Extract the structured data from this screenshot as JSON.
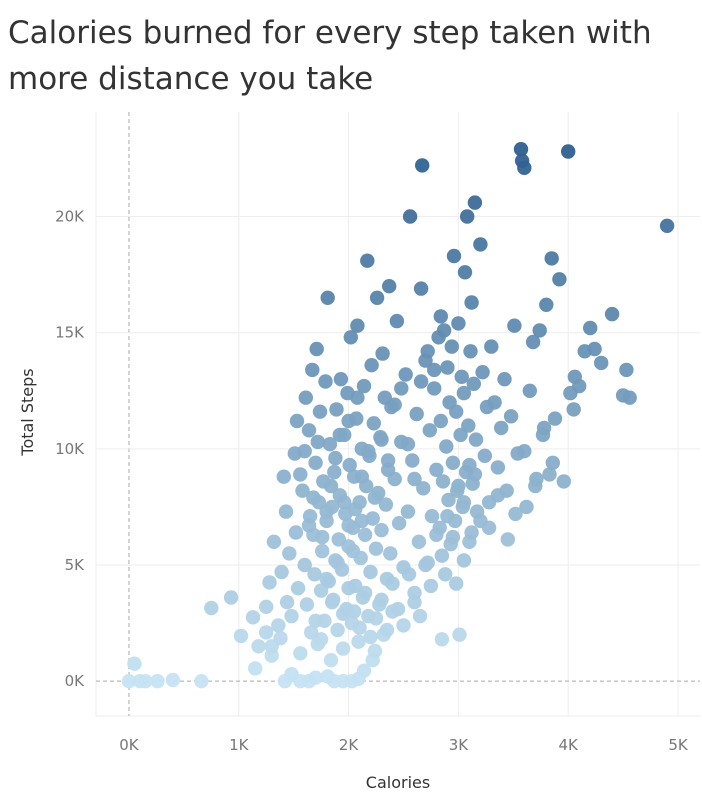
{
  "chart_data": {
    "type": "scatter",
    "title": "Calories burned for every step taken with more distance you take",
    "xlabel": "Calories",
    "ylabel": "Total Steps",
    "xlim": [
      -300,
      5200
    ],
    "ylim": [
      -1500,
      24500
    ],
    "x_ticks": [
      {
        "value": 0,
        "label": "0K"
      },
      {
        "value": 1000,
        "label": "1K"
      },
      {
        "value": 2000,
        "label": "2K"
      },
      {
        "value": 3000,
        "label": "3K"
      },
      {
        "value": 4000,
        "label": "4K"
      },
      {
        "value": 5000,
        "label": "5K"
      }
    ],
    "y_ticks": [
      {
        "value": 0,
        "label": "0K"
      },
      {
        "value": 5000,
        "label": "5K"
      },
      {
        "value": 10000,
        "label": "10K"
      },
      {
        "value": 15000,
        "label": "15K"
      },
      {
        "value": 20000,
        "label": "20K"
      }
    ],
    "grid": true,
    "color_scale": {
      "low": "#c6e3f3",
      "high": "#2d5f8f",
      "min": 0,
      "max": 23000
    },
    "points": [
      [
        0,
        0
      ],
      [
        50,
        750
      ],
      [
        100,
        0
      ],
      [
        150,
        0
      ],
      [
        260,
        0
      ],
      [
        400,
        50
      ],
      [
        660,
        0
      ],
      [
        750,
        3150
      ],
      [
        930,
        3600
      ],
      [
        1020,
        1950
      ],
      [
        1130,
        2750
      ],
      [
        1150,
        550
      ],
      [
        1180,
        1500
      ],
      [
        1250,
        2100
      ],
      [
        1300,
        1100
      ],
      [
        1380,
        1850
      ],
      [
        1420,
        0
      ],
      [
        1480,
        300
      ],
      [
        1560,
        0
      ],
      [
        1640,
        0
      ],
      [
        1700,
        150
      ],
      [
        1810,
        200
      ],
      [
        1870,
        0
      ],
      [
        1950,
        0
      ],
      [
        2030,
        0
      ],
      [
        2090,
        100
      ],
      [
        2140,
        450
      ],
      [
        2220,
        900
      ],
      [
        1250,
        3200
      ],
      [
        1280,
        4250
      ],
      [
        1300,
        1500
      ],
      [
        1320,
        6000
      ],
      [
        1360,
        2400
      ],
      [
        1390,
        4700
      ],
      [
        1410,
        8800
      ],
      [
        1430,
        7300
      ],
      [
        1440,
        3400
      ],
      [
        1460,
        5500
      ],
      [
        1480,
        2800
      ],
      [
        1510,
        9800
      ],
      [
        1520,
        6400
      ],
      [
        1530,
        11200
      ],
      [
        1540,
        4000
      ],
      [
        1560,
        1200
      ],
      [
        1580,
        8200
      ],
      [
        1600,
        5000
      ],
      [
        1610,
        12200
      ],
      [
        1620,
        3300
      ],
      [
        1640,
        10800
      ],
      [
        1650,
        7100
      ],
      [
        1660,
        2100
      ],
      [
        1670,
        13400
      ],
      [
        1680,
        6300
      ],
      [
        1690,
        4600
      ],
      [
        1700,
        9400
      ],
      [
        1710,
        14300
      ],
      [
        1720,
        1600
      ],
      [
        1730,
        7700
      ],
      [
        1740,
        11600
      ],
      [
        1750,
        3900
      ],
      [
        1760,
        5600
      ],
      [
        1770,
        8600
      ],
      [
        1780,
        2600
      ],
      [
        1790,
        12900
      ],
      [
        1800,
        6900
      ],
      [
        1810,
        16500
      ],
      [
        1820,
        4300
      ],
      [
        1830,
        10200
      ],
      [
        1840,
        900
      ],
      [
        1850,
        7500
      ],
      [
        1860,
        3500
      ],
      [
        1870,
        9000
      ],
      [
        1880,
        5200
      ],
      [
        1890,
        11700
      ],
      [
        1900,
        2200
      ],
      [
        1910,
        6100
      ],
      [
        1920,
        8000
      ],
      [
        1930,
        13000
      ],
      [
        1940,
        4800
      ],
      [
        1950,
        1400
      ],
      [
        1960,
        10600
      ],
      [
        1970,
        7200
      ],
      [
        1980,
        3100
      ],
      [
        1990,
        12400
      ],
      [
        2000,
        5800
      ],
      [
        2010,
        9300
      ],
      [
        2020,
        14800
      ],
      [
        2030,
        2500
      ],
      [
        2040,
        6600
      ],
      [
        2050,
        8800
      ],
      [
        2060,
        4100
      ],
      [
        2070,
        11300
      ],
      [
        2080,
        15300
      ],
      [
        2090,
        1700
      ],
      [
        2100,
        7700
      ],
      [
        2110,
        5300
      ],
      [
        2120,
        10000
      ],
      [
        2130,
        3600
      ],
      [
        2140,
        12700
      ],
      [
        2150,
        6300
      ],
      [
        2160,
        8400
      ],
      [
        2170,
        18100
      ],
      [
        2180,
        2800
      ],
      [
        2190,
        9700
      ],
      [
        2200,
        4700
      ],
      [
        2210,
        13600
      ],
      [
        2220,
        7000
      ],
      [
        2230,
        11100
      ],
      [
        2240,
        1300
      ],
      [
        2250,
        5700
      ],
      [
        2260,
        16500
      ],
      [
        2270,
        8100
      ],
      [
        2280,
        3300
      ],
      [
        2290,
        10500
      ],
      [
        2300,
        6500
      ],
      [
        2310,
        14100
      ],
      [
        2320,
        2000
      ],
      [
        2330,
        12200
      ],
      [
        2340,
        7600
      ],
      [
        2350,
        4400
      ],
      [
        2360,
        9100
      ],
      [
        2370,
        17000
      ],
      [
        2380,
        5500
      ],
      [
        2390,
        11800
      ],
      [
        2400,
        3000
      ],
      [
        2420,
        8700
      ],
      [
        2440,
        15500
      ],
      [
        2460,
        6800
      ],
      [
        2480,
        10300
      ],
      [
        2500,
        4900
      ],
      [
        2520,
        13200
      ],
      [
        2540,
        7300
      ],
      [
        2560,
        20000
      ],
      [
        2580,
        9500
      ],
      [
        2600,
        3800
      ],
      [
        2620,
        11500
      ],
      [
        2640,
        6000
      ],
      [
        2660,
        16900
      ],
      [
        2670,
        22200
      ],
      [
        2680,
        8300
      ],
      [
        2700,
        13800
      ],
      [
        2720,
        5100
      ],
      [
        2740,
        10800
      ],
      [
        2760,
        7100
      ],
      [
        2780,
        12600
      ],
      [
        2800,
        9100
      ],
      [
        2820,
        14800
      ],
      [
        2830,
        6600
      ],
      [
        2840,
        11200
      ],
      [
        2850,
        1800
      ],
      [
        2860,
        8600
      ],
      [
        2870,
        15100
      ],
      [
        2880,
        4600
      ],
      [
        2890,
        10100
      ],
      [
        2900,
        13500
      ],
      [
        2910,
        7800
      ],
      [
        2920,
        12000
      ],
      [
        2930,
        5900
      ],
      [
        2940,
        14400
      ],
      [
        2950,
        9400
      ],
      [
        2960,
        18300
      ],
      [
        2970,
        6900
      ],
      [
        2980,
        11600
      ],
      [
        2990,
        8200
      ],
      [
        3000,
        15400
      ],
      [
        3010,
        2000
      ],
      [
        3020,
        10600
      ],
      [
        3030,
        13100
      ],
      [
        3040,
        7500
      ],
      [
        3050,
        12400
      ],
      [
        3060,
        17600
      ],
      [
        3070,
        9000
      ],
      [
        3080,
        20000
      ],
      [
        3090,
        11000
      ],
      [
        3100,
        6000
      ],
      [
        3110,
        14200
      ],
      [
        3120,
        16300
      ],
      [
        3130,
        8500
      ],
      [
        3140,
        12800
      ],
      [
        3150,
        20600
      ],
      [
        3160,
        10400
      ],
      [
        3170,
        7300
      ],
      [
        3200,
        18800
      ],
      [
        3220,
        13300
      ],
      [
        3240,
        9700
      ],
      [
        3260,
        11800
      ],
      [
        3280,
        6600
      ],
      [
        3300,
        14400
      ],
      [
        3330,
        12000
      ],
      [
        3360,
        8000
      ],
      [
        3390,
        10900
      ],
      [
        3420,
        13000
      ],
      [
        3450,
        6100
      ],
      [
        3480,
        11400
      ],
      [
        3510,
        15300
      ],
      [
        3540,
        9800
      ],
      [
        3570,
        22900
      ],
      [
        3580,
        22400
      ],
      [
        3600,
        22100
      ],
      [
        3620,
        7500
      ],
      [
        3650,
        12500
      ],
      [
        3680,
        14600
      ],
      [
        3710,
        8700
      ],
      [
        3740,
        15100
      ],
      [
        3770,
        10600
      ],
      [
        3800,
        16200
      ],
      [
        3830,
        8900
      ],
      [
        3850,
        18200
      ],
      [
        3880,
        11300
      ],
      [
        3920,
        17300
      ],
      [
        3960,
        8600
      ],
      [
        4000,
        22800
      ],
      [
        4020,
        12400
      ],
      [
        4060,
        13100
      ],
      [
        4100,
        12700
      ],
      [
        4150,
        14200
      ],
      [
        4200,
        15200
      ],
      [
        4240,
        14300
      ],
      [
        4300,
        13700
      ],
      [
        4400,
        15800
      ],
      [
        4500,
        12300
      ],
      [
        4530,
        13400
      ],
      [
        4560,
        12200
      ],
      [
        4900,
        19600
      ],
      [
        1700,
        2600
      ],
      [
        1750,
        1800
      ],
      [
        1800,
        4400
      ],
      [
        1850,
        3400
      ],
      [
        1900,
        5100
      ],
      [
        1950,
        2900
      ],
      [
        2000,
        4000
      ],
      [
        2050,
        3000
      ],
      [
        2100,
        2300
      ],
      [
        2150,
        3800
      ],
      [
        2200,
        1900
      ],
      [
        2250,
        2700
      ],
      [
        2300,
        3500
      ],
      [
        2350,
        2200
      ],
      [
        2400,
        4200
      ],
      [
        2450,
        3100
      ],
      [
        2500,
        2400
      ],
      [
        2550,
        4600
      ],
      [
        2600,
        3400
      ],
      [
        2650,
        2800
      ],
      [
        2700,
        5000
      ],
      [
        2750,
        4100
      ],
      [
        2800,
        6300
      ],
      [
        2850,
        5400
      ],
      [
        2900,
        7100
      ],
      [
        2950,
        6200
      ],
      [
        3000,
        8400
      ],
      [
        3050,
        7700
      ],
      [
        3100,
        9300
      ],
      [
        3150,
        8900
      ],
      [
        2000,
        6700
      ],
      [
        2060,
        7400
      ],
      [
        2120,
        8800
      ],
      [
        2180,
        9900
      ],
      [
        2240,
        7900
      ],
      [
        2300,
        10400
      ],
      [
        2360,
        9500
      ],
      [
        2420,
        11900
      ],
      [
        2480,
        12600
      ],
      [
        2540,
        10200
      ],
      [
        2600,
        8700
      ],
      [
        2660,
        12900
      ],
      [
        2720,
        14200
      ],
      [
        2780,
        13400
      ],
      [
        2840,
        15700
      ],
      [
        1560,
        8900
      ],
      [
        1600,
        9900
      ],
      [
        1640,
        6700
      ],
      [
        1680,
        7900
      ],
      [
        1720,
        10300
      ],
      [
        1760,
        6200
      ],
      [
        1800,
        7300
      ],
      [
        1840,
        8400
      ],
      [
        1880,
        9600
      ],
      [
        1920,
        10600
      ],
      [
        1960,
        7700
      ],
      [
        2000,
        11200
      ],
      [
        2040,
        5600
      ],
      [
        2080,
        12200
      ],
      [
        2120,
        6900
      ],
      [
        2980,
        4200
      ],
      [
        3050,
        5200
      ],
      [
        3120,
        6400
      ],
      [
        3200,
        6900
      ],
      [
        3280,
        7700
      ],
      [
        3360,
        9200
      ],
      [
        3440,
        8200
      ],
      [
        3520,
        7200
      ],
      [
        3600,
        9900
      ],
      [
        3700,
        8400
      ],
      [
        3780,
        10900
      ],
      [
        3860,
        9400
      ],
      [
        4050,
        11700
      ]
    ]
  }
}
